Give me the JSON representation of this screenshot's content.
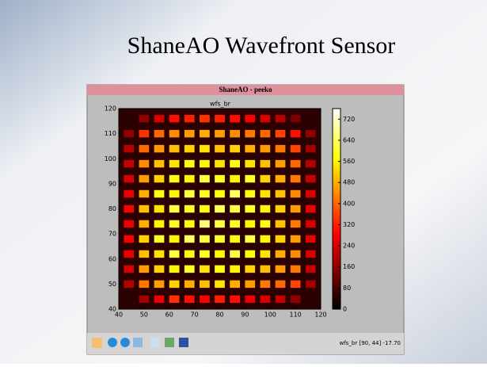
{
  "slide_title": "ShaneAO Wavefront Sensor",
  "window_title": "ShaneAO - peeko",
  "status_text": "wfs_br [90, 44] -17.70",
  "chart_data": {
    "type": "heatmap",
    "title": "wfs_br",
    "x": [
      44,
      50,
      56,
      62,
      68,
      74,
      80,
      86,
      92,
      98,
      104,
      110,
      116
    ],
    "y": [
      44,
      50,
      56,
      62,
      68,
      74,
      80,
      86,
      92,
      98,
      104,
      110,
      116
    ],
    "values": [
      [
        null,
        180,
        260,
        340,
        300,
        280,
        320,
        300,
        260,
        240,
        220,
        160,
        null
      ],
      [
        200,
        420,
        460,
        520,
        480,
        500,
        540,
        480,
        460,
        420,
        400,
        360,
        180
      ],
      [
        240,
        460,
        520,
        560,
        600,
        540,
        580,
        560,
        520,
        500,
        460,
        420,
        220
      ],
      [
        260,
        500,
        540,
        620,
        580,
        600,
        560,
        620,
        580,
        540,
        480,
        440,
        240
      ],
      [
        280,
        520,
        600,
        560,
        640,
        620,
        600,
        580,
        620,
        560,
        520,
        460,
        260
      ],
      [
        260,
        480,
        560,
        600,
        580,
        660,
        620,
        600,
        560,
        580,
        500,
        420,
        240
      ],
      [
        280,
        500,
        540,
        620,
        600,
        580,
        640,
        620,
        600,
        560,
        520,
        460,
        260
      ],
      [
        260,
        480,
        580,
        560,
        620,
        600,
        580,
        640,
        580,
        540,
        500,
        440,
        240
      ],
      [
        240,
        460,
        520,
        580,
        560,
        620,
        600,
        560,
        600,
        520,
        480,
        420,
        220
      ],
      [
        220,
        440,
        500,
        540,
        580,
        560,
        540,
        580,
        540,
        500,
        460,
        400,
        200
      ],
      [
        200,
        400,
        460,
        500,
        520,
        540,
        500,
        520,
        480,
        460,
        420,
        360,
        180
      ],
      [
        160,
        340,
        400,
        440,
        460,
        480,
        460,
        440,
        420,
        400,
        360,
        300,
        160
      ],
      [
        null,
        160,
        240,
        300,
        320,
        340,
        320,
        300,
        280,
        240,
        200,
        140,
        null
      ]
    ],
    "xlim": [
      40,
      120
    ],
    "ylim": [
      40,
      120
    ],
    "xticks": [
      40,
      50,
      60,
      70,
      80,
      90,
      100,
      110,
      120
    ],
    "yticks": [
      40,
      50,
      60,
      70,
      80,
      90,
      100,
      110,
      120
    ],
    "clim": [
      0,
      760
    ],
    "cticks": [
      0,
      80,
      160,
      240,
      320,
      400,
      480,
      560,
      640,
      720
    ],
    "background": "#2a0000"
  }
}
